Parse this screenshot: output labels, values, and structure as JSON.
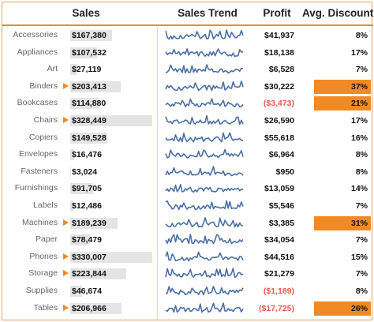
{
  "headers": {
    "sales": "Sales",
    "trend": "Sales Trend",
    "profit": "Profit",
    "discount": "Avg. Discount"
  },
  "colors": {
    "accent": "#f08a24",
    "bar": "#e4e4e4",
    "spark": "#4a6fa5",
    "negative": "#e85a4f"
  },
  "rows": [
    {
      "category": "Accessories",
      "sales": "$167,380",
      "sales_value": 167380,
      "flagged": false,
      "profit": "$41,937",
      "negative": false,
      "discount": "8%",
      "highlight": false
    },
    {
      "category": "Appliances",
      "sales": "$107,532",
      "sales_value": 107532,
      "flagged": false,
      "profit": "$18,138",
      "negative": false,
      "discount": "17%",
      "highlight": false
    },
    {
      "category": "Art",
      "sales": "$27,119",
      "sales_value": 27119,
      "flagged": false,
      "profit": "$6,528",
      "negative": false,
      "discount": "7%",
      "highlight": false
    },
    {
      "category": "Binders",
      "sales": "$203,413",
      "sales_value": 203413,
      "flagged": true,
      "profit": "$30,222",
      "negative": false,
      "discount": "37%",
      "highlight": true
    },
    {
      "category": "Bookcases",
      "sales": "$114,880",
      "sales_value": 114880,
      "flagged": false,
      "profit": "($3,473)",
      "negative": true,
      "discount": "21%",
      "highlight": true
    },
    {
      "category": "Chairs",
      "sales": "$328,449",
      "sales_value": 328449,
      "flagged": true,
      "profit": "$26,590",
      "negative": false,
      "discount": "17%",
      "highlight": false
    },
    {
      "category": "Copiers",
      "sales": "$149,528",
      "sales_value": 149528,
      "flagged": false,
      "profit": "$55,618",
      "negative": false,
      "discount": "16%",
      "highlight": false
    },
    {
      "category": "Envelopes",
      "sales": "$16,476",
      "sales_value": 16476,
      "flagged": false,
      "profit": "$6,964",
      "negative": false,
      "discount": "8%",
      "highlight": false
    },
    {
      "category": "Fasteners",
      "sales": "$3,024",
      "sales_value": 3024,
      "flagged": false,
      "profit": "$950",
      "negative": false,
      "discount": "8%",
      "highlight": false
    },
    {
      "category": "Furnishings",
      "sales": "$91,705",
      "sales_value": 91705,
      "flagged": false,
      "profit": "$13,059",
      "negative": false,
      "discount": "14%",
      "highlight": false
    },
    {
      "category": "Labels",
      "sales": "$12,486",
      "sales_value": 12486,
      "flagged": false,
      "profit": "$5,546",
      "negative": false,
      "discount": "7%",
      "highlight": false
    },
    {
      "category": "Machines",
      "sales": "$189,239",
      "sales_value": 189239,
      "flagged": true,
      "profit": "$3,385",
      "negative": false,
      "discount": "31%",
      "highlight": true
    },
    {
      "category": "Paper",
      "sales": "$78,479",
      "sales_value": 78479,
      "flagged": false,
      "profit": "$34,054",
      "negative": false,
      "discount": "7%",
      "highlight": false
    },
    {
      "category": "Phones",
      "sales": "$330,007",
      "sales_value": 330007,
      "flagged": true,
      "profit": "$44,516",
      "negative": false,
      "discount": "15%",
      "highlight": false
    },
    {
      "category": "Storage",
      "sales": "$223,844",
      "sales_value": 223844,
      "flagged": true,
      "profit": "$21,279",
      "negative": false,
      "discount": "7%",
      "highlight": false
    },
    {
      "category": "Supplies",
      "sales": "$46,674",
      "sales_value": 46674,
      "flagged": false,
      "profit": "($1,189)",
      "negative": true,
      "discount": "8%",
      "highlight": false
    },
    {
      "category": "Tables",
      "sales": "$206,966",
      "sales_value": 206966,
      "flagged": true,
      "profit": "($17,725)",
      "negative": true,
      "discount": "26%",
      "highlight": true
    }
  ]
}
